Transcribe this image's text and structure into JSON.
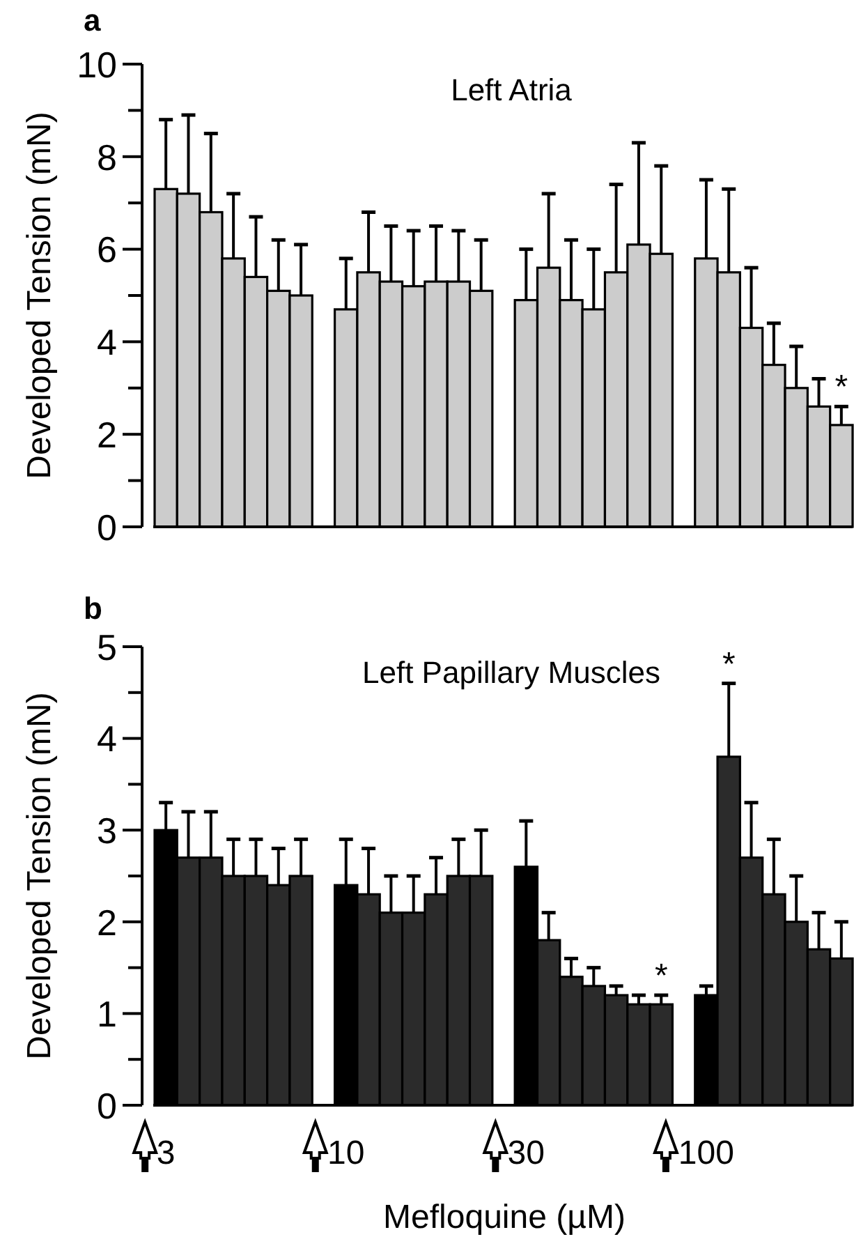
{
  "chart_data": [
    {
      "type": "bar",
      "title": "a",
      "subtitle": "Left Atria",
      "ylabel": "Developed Tension (mN)",
      "grid": false,
      "categories": [
        null,
        null,
        null,
        null,
        null,
        null,
        null,
        null,
        null,
        null,
        null,
        null,
        null,
        null,
        null,
        null,
        null,
        null,
        null,
        null,
        null,
        null,
        null,
        null,
        null,
        null,
        null,
        null,
        null,
        null,
        null
      ],
      "ylim": [
        0,
        10
      ],
      "yticks": [
        0,
        {
          "value": 1,
          "label": null
        },
        2,
        {
          "value": 3,
          "label": null
        },
        4,
        {
          "value": 5,
          "label": null
        },
        6,
        {
          "value": 7,
          "label": null
        },
        8,
        {
          "value": 9,
          "label": null
        },
        10
      ],
      "series": [
        {
          "color": "#cccccc",
          "values": [
            7.3,
            7.2,
            6.8,
            5.8,
            5.4,
            5.1,
            5.0,
            null,
            4.7,
            5.5,
            5.3,
            5.2,
            5.3,
            5.3,
            5.1,
            null,
            4.9,
            5.6,
            4.9,
            4.7,
            5.5,
            6.1,
            5.9,
            null,
            5.8,
            5.5,
            4.3,
            3.5,
            3.0,
            2.6,
            2.2
          ],
          "errors": [
            [
              7.3,
              8.8
            ],
            [
              7.2,
              8.9
            ],
            [
              6.8,
              8.5
            ],
            [
              5.8,
              7.2
            ],
            [
              5.4,
              6.7
            ],
            [
              5.1,
              6.2
            ],
            [
              5.0,
              6.1
            ],
            null,
            [
              4.7,
              5.8
            ],
            [
              5.5,
              6.8
            ],
            [
              5.3,
              6.5
            ],
            [
              5.2,
              6.4
            ],
            [
              5.3,
              6.5
            ],
            [
              5.3,
              6.4
            ],
            [
              5.1,
              6.2
            ],
            null,
            [
              4.9,
              6.0
            ],
            [
              5.6,
              7.2
            ],
            [
              4.9,
              6.2
            ],
            [
              4.7,
              6.0
            ],
            [
              5.5,
              7.4
            ],
            [
              6.1,
              8.3
            ],
            [
              5.9,
              7.8
            ],
            null,
            [
              5.8,
              7.5
            ],
            [
              5.5,
              7.3
            ],
            [
              4.3,
              5.6
            ],
            [
              3.5,
              4.4
            ],
            [
              3.0,
              3.9
            ],
            [
              2.6,
              3.2
            ],
            [
              2.2,
              2.6
            ]
          ],
          "value_labels": [
            null,
            null,
            null,
            null,
            null,
            null,
            null,
            null,
            null,
            null,
            null,
            null,
            null,
            null,
            null,
            null,
            null,
            null,
            null,
            null,
            null,
            null,
            null,
            null,
            null,
            null,
            null,
            null,
            null,
            null,
            "*"
          ]
        }
      ]
    },
    {
      "type": "bar",
      "title": "b",
      "subtitle": "Left Papillary Muscles",
      "ylabel": "Developed Tension (mN)",
      "xlabel": "Mefloquine (µM)",
      "grid": false,
      "categories": [
        "3",
        null,
        null,
        null,
        null,
        null,
        null,
        null,
        "10",
        null,
        null,
        null,
        null,
        null,
        null,
        null,
        "30",
        null,
        null,
        null,
        null,
        null,
        null,
        null,
        "100",
        null,
        null,
        null,
        null,
        null,
        null
      ],
      "ylim": [
        0,
        5
      ],
      "yticks": [
        0,
        {
          "value": 0.5,
          "label": null
        },
        1,
        {
          "value": 1.5,
          "label": null
        },
        2,
        {
          "value": 2.5,
          "label": null
        },
        3,
        {
          "value": 3.5,
          "label": null
        },
        4,
        {
          "value": 4.5,
          "label": null
        },
        5
      ],
      "series": [
        {
          "colors": [
            "#000000",
            "#2b2b2b",
            "#2b2b2b",
            "#2b2b2b",
            "#2b2b2b",
            "#2b2b2b",
            "#2b2b2b",
            null,
            "#000000",
            "#2b2b2b",
            "#2b2b2b",
            "#2b2b2b",
            "#2b2b2b",
            "#2b2b2b",
            "#2b2b2b",
            null,
            "#000000",
            "#2b2b2b",
            "#2b2b2b",
            "#2b2b2b",
            "#2b2b2b",
            "#2b2b2b",
            "#2b2b2b",
            null,
            "#000000",
            "#2b2b2b",
            "#2b2b2b",
            "#2b2b2b",
            "#2b2b2b",
            "#2b2b2b",
            "#2b2b2b"
          ],
          "values": [
            3.0,
            2.7,
            2.7,
            2.5,
            2.5,
            2.4,
            2.5,
            null,
            2.4,
            2.3,
            2.1,
            2.1,
            2.3,
            2.5,
            2.5,
            null,
            2.6,
            1.8,
            1.4,
            1.3,
            1.2,
            1.1,
            1.1,
            null,
            1.2,
            3.8,
            2.7,
            2.3,
            2.0,
            1.7,
            1.6
          ],
          "errors": [
            [
              3.0,
              3.3
            ],
            [
              2.7,
              3.2
            ],
            [
              2.7,
              3.2
            ],
            [
              2.5,
              2.9
            ],
            [
              2.5,
              2.9
            ],
            [
              2.4,
              2.8
            ],
            [
              2.5,
              2.9
            ],
            null,
            [
              2.4,
              2.9
            ],
            [
              2.3,
              2.8
            ],
            [
              2.1,
              2.5
            ],
            [
              2.1,
              2.5
            ],
            [
              2.3,
              2.7
            ],
            [
              2.5,
              2.9
            ],
            [
              2.5,
              3.0
            ],
            null,
            [
              2.6,
              3.1
            ],
            [
              1.8,
              2.1
            ],
            [
              1.4,
              1.6
            ],
            [
              1.3,
              1.5
            ],
            [
              1.2,
              1.3
            ],
            [
              1.1,
              1.2
            ],
            [
              1.1,
              1.2
            ],
            null,
            [
              1.2,
              1.3
            ],
            [
              3.8,
              4.6
            ],
            [
              2.7,
              3.3
            ],
            [
              2.3,
              2.9
            ],
            [
              2.0,
              2.5
            ],
            [
              1.7,
              2.1
            ],
            [
              1.6,
              2.0
            ]
          ],
          "value_labels": [
            null,
            null,
            null,
            null,
            null,
            null,
            null,
            null,
            null,
            null,
            null,
            null,
            null,
            null,
            null,
            null,
            null,
            null,
            null,
            null,
            null,
            null,
            "*",
            null,
            null,
            "*",
            null,
            null,
            null,
            null,
            null
          ]
        }
      ]
    }
  ]
}
